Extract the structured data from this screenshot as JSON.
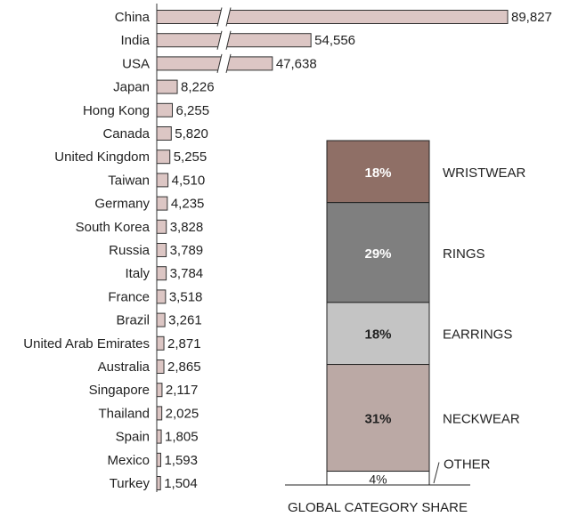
{
  "chart_data": [
    {
      "type": "bar",
      "orientation": "horizontal",
      "axis_break": true,
      "categories": [
        "China",
        "India",
        "USA",
        "Japan",
        "Hong Kong",
        "Canada",
        "United Kingdom",
        "Taiwan",
        "Germany",
        "South Korea",
        "Russia",
        "Italy",
        "France",
        "Brazil",
        "United Arab Emirates",
        "Australia",
        "Singapore",
        "Thailand",
        "Spain",
        "Mexico",
        "Turkey"
      ],
      "values": [
        89827,
        54556,
        47638,
        8226,
        6255,
        5820,
        5255,
        4510,
        4235,
        3828,
        3789,
        3784,
        3518,
        3261,
        2871,
        2865,
        2117,
        2025,
        1805,
        1593,
        1504
      ],
      "value_labels": [
        "89,827",
        "54,556",
        "47,638",
        "8,226",
        "6,255",
        "5,820",
        "5,255",
        "4,510",
        "4,235",
        "3,828",
        "3,789",
        "3,784",
        "3,518",
        "3,261",
        "2,871",
        "2,865",
        "2,117",
        "2,025",
        "1,805",
        "1,593",
        "1,504"
      ],
      "colors": {
        "bar_fill": "#dcc6c4",
        "bar_stroke": "#333333"
      },
      "grid": false
    },
    {
      "type": "bar",
      "stacked": true,
      "xlabel": "GLOBAL CATEGORY SHARE",
      "segments": [
        {
          "name": "WRISTWEAR",
          "value": 18,
          "label": "18%",
          "color": "#8f6f66",
          "text_color": "#ffffff"
        },
        {
          "name": "RINGS",
          "value": 29,
          "label": "29%",
          "color": "#7f7f7f",
          "text_color": "#ffffff"
        },
        {
          "name": "EARRINGS",
          "value": 18,
          "label": "18%",
          "color": "#c4c4c4",
          "text_color": "#222222"
        },
        {
          "name": "NECKWEAR",
          "value": 31,
          "label": "31%",
          "color": "#bba9a5",
          "text_color": "#222222"
        },
        {
          "name": "OTHER",
          "value": 4,
          "label": "4%",
          "color": "#ffffff",
          "text_color": "#222222"
        }
      ]
    }
  ]
}
